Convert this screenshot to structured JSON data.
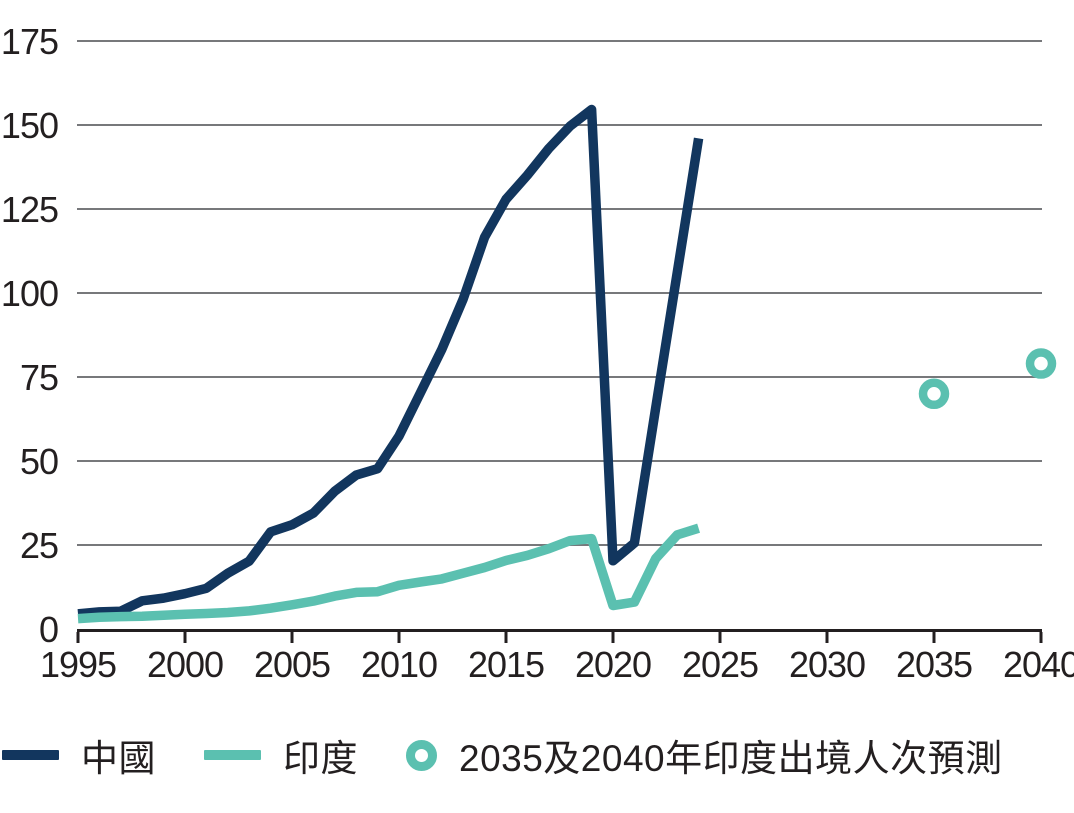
{
  "colors": {
    "china": "#12365E",
    "india": "#5BC0B0",
    "grid": "#77787B",
    "axis": "#231F20",
    "text": "#231F20",
    "background": "#FFFFFF"
  },
  "legend": {
    "items": [
      {
        "id": "china",
        "label": "中國",
        "swatch": "line",
        "color": "#12365E"
      },
      {
        "id": "india",
        "label": "印度",
        "swatch": "line",
        "color": "#5BC0B0"
      },
      {
        "id": "india-forecast",
        "label": "2035及2040年印度出境人次預測",
        "swatch": "ring",
        "color": "#5BC0B0"
      }
    ]
  },
  "chart_data": {
    "type": "line",
    "title": "",
    "xlabel": "",
    "ylabel": "",
    "xlim": [
      1995,
      2040
    ],
    "ylim": [
      0,
      175
    ],
    "xticks": [
      1995,
      2000,
      2005,
      2010,
      2015,
      2020,
      2025,
      2030,
      2035,
      2040
    ],
    "yticks": [
      0,
      25,
      50,
      75,
      100,
      125,
      150,
      175
    ],
    "grid": "horizontal",
    "legend_position": "bottom",
    "series": [
      {
        "id": "china",
        "name": "中國",
        "color": "#12365E",
        "x": [
          1995,
          1996,
          1997,
          1998,
          1999,
          2000,
          2001,
          2002,
          2003,
          2004,
          2005,
          2006,
          2007,
          2008,
          2009,
          2010,
          2011,
          2012,
          2013,
          2014,
          2015,
          2016,
          2017,
          2018,
          2019,
          2020,
          2021,
          2022,
          2023,
          2024
        ],
        "values": [
          4.5,
          5.1,
          5.3,
          8.4,
          9.2,
          10.5,
          12.1,
          16.6,
          20.2,
          28.9,
          31.0,
          34.5,
          41.0,
          45.8,
          47.7,
          57.4,
          70.3,
          83.2,
          98.2,
          116.6,
          127.9,
          135.1,
          143.0,
          149.7,
          154.6,
          20.3,
          25.6,
          66.0,
          106.0,
          146.0
        ]
      },
      {
        "id": "india",
        "name": "印度",
        "color": "#5BC0B0",
        "x": [
          1995,
          1996,
          1997,
          1998,
          1999,
          2000,
          2001,
          2002,
          2003,
          2004,
          2005,
          2006,
          2007,
          2008,
          2009,
          2010,
          2011,
          2012,
          2013,
          2014,
          2015,
          2016,
          2017,
          2018,
          2019,
          2020,
          2021,
          2022,
          2023,
          2024
        ],
        "values": [
          3.1,
          3.5,
          3.7,
          3.8,
          4.1,
          4.4,
          4.6,
          4.9,
          5.4,
          6.2,
          7.2,
          8.3,
          9.8,
          10.9,
          11.1,
          13.0,
          14.0,
          14.9,
          16.6,
          18.3,
          20.4,
          21.9,
          23.9,
          26.3,
          26.9,
          7.0,
          8.0,
          21.0,
          28.0,
          30.0
        ]
      }
    ],
    "forecast_markers": {
      "id": "india-forecast",
      "name": "2035及2040年印度出境人次預測",
      "color": "#5BC0B0",
      "points": [
        {
          "x": 2035,
          "y": 70
        },
        {
          "x": 2040,
          "y": 79
        }
      ]
    }
  }
}
